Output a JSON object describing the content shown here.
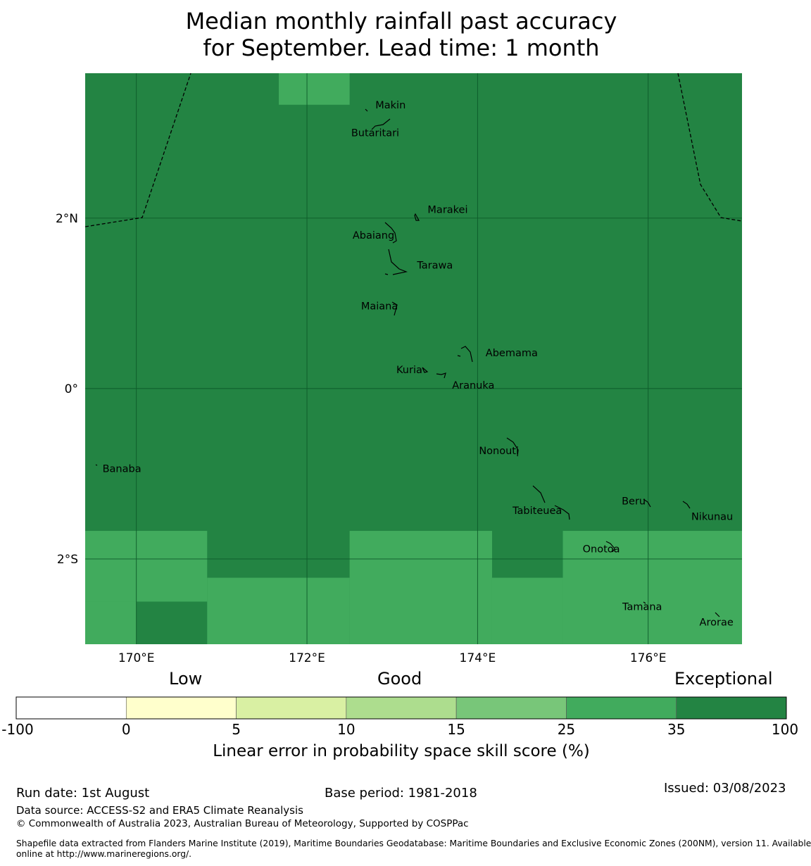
{
  "title_line1": "Median monthly rainfall past accuracy",
  "title_line2": "for September. Lead time: 1 month",
  "map": {
    "lon_range": [
      169.4,
      177.1
    ],
    "lat_range": [
      -3.0,
      3.7
    ],
    "lon_ticks": [
      {
        "value": 170,
        "label": "170°E"
      },
      {
        "value": 172,
        "label": "172°E"
      },
      {
        "value": 174,
        "label": "174°E"
      },
      {
        "value": 176,
        "label": "176°E"
      }
    ],
    "lat_ticks": [
      {
        "value": 2,
        "label": "2°N"
      },
      {
        "value": 0,
        "label": "0°"
      },
      {
        "value": -2,
        "label": "2°S"
      }
    ],
    "grid": true,
    "grid_cells": [
      {
        "lon0": 171.67,
        "lon1": 172.5,
        "lat0": 3.33,
        "lat1": 3.7,
        "category": "25-35"
      },
      {
        "lon0": 169.4,
        "lon1": 170.83,
        "lat0": -2.5,
        "lat1": -1.67,
        "category": "25-35"
      },
      {
        "lon0": 169.4,
        "lon1": 170.0,
        "lat0": -3.0,
        "lat1": -2.5,
        "category": "25-35"
      },
      {
        "lon0": 170.83,
        "lon1": 172.5,
        "lat0": -3.0,
        "lat1": -2.22,
        "category": "25-35"
      },
      {
        "lon0": 172.5,
        "lon1": 174.17,
        "lat0": -3.0,
        "lat1": -1.67,
        "category": "25-35"
      },
      {
        "lon0": 174.17,
        "lon1": 175.0,
        "lat0": -3.0,
        "lat1": -2.22,
        "category": "25-35"
      },
      {
        "lon0": 175.0,
        "lon1": 177.1,
        "lat0": -3.0,
        "lat1": -1.67,
        "category": "25-35"
      }
    ],
    "default_category": "35-100",
    "islands": [
      {
        "name": "Makin",
        "lon": 172.98,
        "lat": 3.33
      },
      {
        "name": "Butaritari",
        "lon": 172.8,
        "lat": 3.0
      },
      {
        "name": "Marakei",
        "lon": 173.65,
        "lat": 2.1
      },
      {
        "name": "Abaiang",
        "lon": 172.78,
        "lat": 1.8
      },
      {
        "name": "Tarawa",
        "lon": 173.5,
        "lat": 1.45
      },
      {
        "name": "Maiana",
        "lon": 172.85,
        "lat": 0.97
      },
      {
        "name": "Abemama",
        "lon": 174.4,
        "lat": 0.42
      },
      {
        "name": "Kuria",
        "lon": 173.2,
        "lat": 0.22
      },
      {
        "name": "Aranuka",
        "lon": 173.95,
        "lat": 0.04
      },
      {
        "name": "Nonouti",
        "lon": 174.25,
        "lat": -0.73
      },
      {
        "name": "Banaba",
        "lon": 169.83,
        "lat": -0.94
      },
      {
        "name": "Beru",
        "lon": 175.83,
        "lat": -1.32
      },
      {
        "name": "Tabiteuea",
        "lon": 174.7,
        "lat": -1.43
      },
      {
        "name": "Nikunau",
        "lon": 176.75,
        "lat": -1.5
      },
      {
        "name": "Onotoa",
        "lon": 175.45,
        "lat": -1.88
      },
      {
        "name": "Tamana",
        "lon": 175.93,
        "lat": -2.56
      },
      {
        "name": "Arorae",
        "lon": 176.8,
        "lat": -2.74
      }
    ]
  },
  "legend": {
    "categories": [
      "Low",
      "Good",
      "Exceptional"
    ],
    "bins": [
      {
        "range": "-100-0",
        "color": "#ffffff"
      },
      {
        "range": "0-5",
        "color": "#ffffcc"
      },
      {
        "range": "5-10",
        "color": "#d9f0a3"
      },
      {
        "range": "10-15",
        "color": "#addd8e"
      },
      {
        "range": "15-25",
        "color": "#78c679"
      },
      {
        "range": "25-35",
        "color": "#41ab5d"
      },
      {
        "range": "35-100",
        "color": "#238443"
      }
    ],
    "tick_labels": [
      "-100",
      "0",
      "5",
      "10",
      "15",
      "25",
      "35",
      "100"
    ],
    "label": "Linear error in probability space skill score (%)"
  },
  "footer": {
    "run_date": "Run date: 1st August",
    "base_period": "Base period: 1981-2018",
    "issued": "Issued: 03/08/2023",
    "data_source": "Data source: ACCESS-S2 and ERA5 Climate Reanalysis",
    "copyright": "© Commonwealth of Australia 2023, Australian Bureau of Meteorology, Supported by COSPPac",
    "shapefile_line1": "Shapefile data extracted from Flanders Marine Institute (2019), Maritime Boundaries Geodatabase: Maritime Boundaries and Exclusive Economic Zones (200NM), version 11. Available",
    "shapefile_line2": "online at http://www.marineregions.org/."
  }
}
